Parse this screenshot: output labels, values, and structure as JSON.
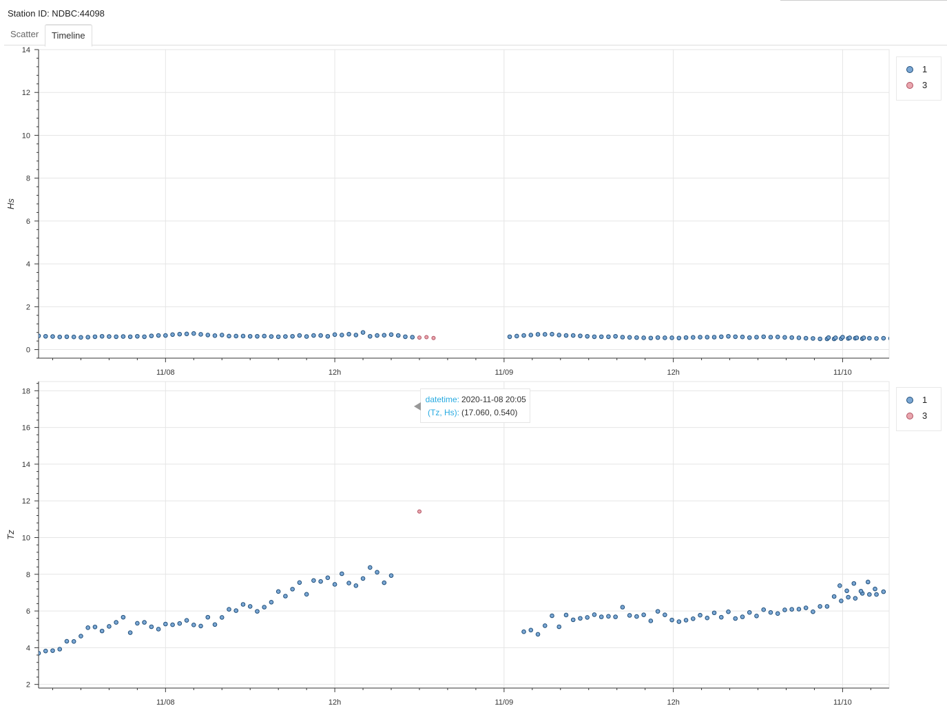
{
  "header": {
    "station_label": "Station ID: NDBC:44098"
  },
  "tabs": [
    {
      "label": "Scatter",
      "active": false
    },
    {
      "label": "Timeline",
      "active": true
    }
  ],
  "legend": [
    {
      "label": "1",
      "fill": "#7ba7d4",
      "stroke": "#1f4e79"
    },
    {
      "label": "3",
      "fill": "#e9a6ae",
      "stroke": "#b05060"
    }
  ],
  "tooltip": {
    "fields": [
      {
        "key": "datetime:",
        "value": "2020-11-08 20:05"
      },
      {
        "key": "(Tz, Hs):",
        "value": "(17.060, 0.540)"
      }
    ]
  },
  "chart_data": [
    {
      "type": "scatter",
      "ylabel": "Hs",
      "xlabel": "",
      "ylim": [
        -0.4,
        14
      ],
      "yticks": [
        0,
        2,
        4,
        6,
        8,
        10,
        12,
        14
      ],
      "x_range_hours": [
        -9,
        51.3
      ],
      "xticks": [
        {
          "h": 0,
          "label": "11/08"
        },
        {
          "h": 12,
          "label": "12h"
        },
        {
          "h": 24,
          "label": "11/09"
        },
        {
          "h": 36,
          "label": "12h"
        },
        {
          "h": 48,
          "label": "11/10"
        }
      ],
      "grid": true,
      "legend_position": "top-right",
      "series": [
        {
          "name": "1",
          "segments": [
            {
              "start_h": -9.0,
              "step_h": 0.5,
              "values": [
                0.64,
                0.62,
                0.61,
                0.59,
                0.6,
                0.59,
                0.57,
                0.58,
                0.6,
                0.62,
                0.61,
                0.6,
                0.61,
                0.6,
                0.62,
                0.6,
                0.64,
                0.66,
                0.66,
                0.7,
                0.72,
                0.73,
                0.75,
                0.71,
                0.68,
                0.65,
                0.68,
                0.63,
                0.63,
                0.63,
                0.62,
                0.62,
                0.63,
                0.61,
                0.6,
                0.61,
                0.62,
                0.66,
                0.61,
                0.66,
                0.66,
                0.62,
                0.7,
                0.68,
                0.72,
                0.68,
                0.8,
                0.62,
                0.66,
                0.67,
                0.7,
                0.66,
                0.6,
                0.58
              ]
            },
            {
              "start_h": 24.4,
              "step_h": 0.5,
              "values": [
                0.6,
                0.63,
                0.66,
                0.68,
                0.71,
                0.71,
                0.72,
                0.68,
                0.66,
                0.66,
                0.64,
                0.62,
                0.6,
                0.6,
                0.6,
                0.62,
                0.58,
                0.57,
                0.56,
                0.55,
                0.54,
                0.56,
                0.55,
                0.55,
                0.54,
                0.56,
                0.57,
                0.58,
                0.58,
                0.58,
                0.6,
                0.62,
                0.6,
                0.59,
                0.56,
                0.58,
                0.6,
                0.58,
                0.59,
                0.57,
                0.56,
                0.55,
                0.53,
                0.52,
                0.5,
                0.5,
                0.5,
                0.51,
                0.52,
                0.53,
                0.51,
                0.53,
                0.52,
                0.53,
                0.52,
                0.52,
                0.53
              ]
            },
            {
              "start_h": 47.0,
              "step_h": 0.5,
              "values": [
                0.56,
                0.55,
                0.58,
                0.55,
                0.55,
                0.55
              ]
            }
          ]
        },
        {
          "name": "3",
          "segments": [
            {
              "start_h": 18.0,
              "step_h": 0.5,
              "values": [
                0.56,
                0.58,
                0.54
              ]
            }
          ]
        }
      ]
    },
    {
      "type": "scatter",
      "ylabel": "Tz",
      "xlabel": "",
      "ylim": [
        1.8,
        18.5
      ],
      "yticks": [
        2,
        4,
        6,
        8,
        10,
        12,
        14,
        16,
        18
      ],
      "x_range_hours": [
        -9,
        51.3
      ],
      "xticks": [
        {
          "h": 0,
          "label": "11/08"
        },
        {
          "h": 12,
          "label": "12h"
        },
        {
          "h": 24,
          "label": "11/09"
        },
        {
          "h": 36,
          "label": "12h"
        },
        {
          "h": 48,
          "label": "11/10"
        }
      ],
      "grid": true,
      "legend_position": "top-right",
      "series": [
        {
          "name": "1",
          "segments": [
            {
              "start_h": -9.0,
              "step_h": 0.5,
              "values": [
                3.7,
                3.82,
                3.84,
                3.92,
                4.35,
                4.34,
                4.63,
                5.09,
                5.13,
                4.91,
                5.16,
                5.38,
                5.66,
                4.82,
                5.33,
                5.38,
                5.14,
                5.01,
                5.29,
                5.25,
                5.32,
                5.49,
                5.24,
                5.18,
                5.66,
                5.26,
                5.65,
                6.09,
                6.02,
                6.36,
                6.25,
                5.98,
                6.21,
                6.48,
                7.06,
                6.81,
                7.19,
                7.55,
                6.91,
                7.66,
                7.61,
                7.81,
                7.45,
                8.03,
                7.52,
                7.38,
                7.77,
                8.37,
                8.11,
                7.54,
                7.93
              ]
            },
            {
              "start_h": 25.4,
              "step_h": 0.5,
              "values": [
                4.87,
                4.96,
                4.73,
                5.2,
                5.74,
                5.14,
                5.78,
                5.52,
                5.6,
                5.65,
                5.8,
                5.68,
                5.71,
                5.68,
                6.21,
                5.76,
                5.7,
                5.79,
                5.46,
                5.98,
                5.79,
                5.51,
                5.42,
                5.5,
                5.58,
                5.77,
                5.62,
                5.9,
                5.66,
                5.96,
                5.59,
                5.68,
                5.92,
                5.73,
                6.07,
                5.92,
                5.86,
                6.06,
                6.09,
                6.1,
                6.17,
                5.96,
                6.25,
                6.25,
                6.79,
                6.55,
                6.75,
                6.69,
                6.96,
                6.9,
                6.9,
                7.05
              ]
            },
            {
              "start_h": 47.8,
              "step_h": 0.5,
              "values": [
                7.38,
                7.1,
                7.5,
                7.08,
                7.58,
                7.2
              ]
            }
          ]
        },
        {
          "name": "3",
          "segments": [
            {
              "start_h": 18.0,
              "step_h": 0.5,
              "values": [
                11.42,
                17.74,
                17.06
              ]
            }
          ]
        }
      ]
    }
  ]
}
